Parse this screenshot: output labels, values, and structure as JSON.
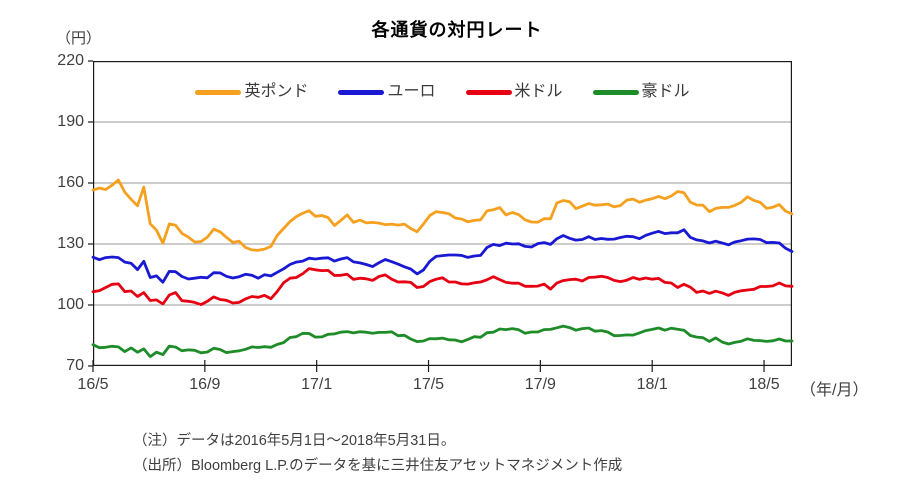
{
  "title": "各通貨の対円レート",
  "y_axis": {
    "unit": "（円）",
    "tick_labels": [
      "220",
      "190",
      "160",
      "130",
      "100",
      "70"
    ]
  },
  "x_axis": {
    "unit": "（年/月）",
    "tick_labels": [
      "16/5",
      "16/9",
      "17/1",
      "17/5",
      "17/9",
      "18/1",
      "18/5"
    ]
  },
  "legend": {
    "items": [
      {
        "id": "gbp",
        "label": "英ポンド",
        "color": "#F5A01E"
      },
      {
        "id": "eur",
        "label": "ユーロ",
        "color": "#1919D4"
      },
      {
        "id": "usd",
        "label": "米ドル",
        "color": "#E60012"
      },
      {
        "id": "aud",
        "label": "豪ドル",
        "color": "#1E8C28"
      }
    ]
  },
  "notes": {
    "line1": "（注）データは2016年5月1日～2018年5月31日。",
    "line2": "（出所）Bloomberg L.P.のデータを基に三井住友アセットマネジメント作成"
  },
  "chart_data": {
    "type": "line",
    "title": "各通貨の対円レート",
    "xlabel": "（年/月）",
    "ylabel": "（円）",
    "ylim": [
      70,
      220
    ],
    "y_ticks": [
      220,
      190,
      160,
      130,
      100,
      70
    ],
    "x_tick_labels": [
      "16/5",
      "16/9",
      "17/1",
      "17/5",
      "17/9",
      "18/1",
      "18/5"
    ],
    "x_tick_month_offsets": [
      0,
      4,
      8,
      12,
      16,
      20,
      24
    ],
    "x_total_months": 25,
    "x_range": "2016-05-01 to 2018-05-31, values sampled approximately weekly",
    "grid": "horizontal-only",
    "legend_position": "top-center-inside",
    "series": [
      {
        "id": "gbp",
        "name": "英ポンド",
        "color": "#F5A01E",
        "values": [
          156.5,
          157.5,
          156.8,
          158.9,
          161.5,
          155.5,
          152.0,
          148.8,
          158.0,
          140.0,
          136.8,
          130.4,
          139.9,
          139.2,
          135.2,
          133.4,
          131.0,
          131.2,
          133.4,
          137.3,
          136.0,
          133.3,
          130.8,
          131.4,
          128.3,
          127.1,
          126.9,
          127.5,
          128.8,
          134.3,
          137.6,
          141.0,
          143.5,
          145.1,
          146.4,
          143.6,
          144.0,
          143.0,
          139.1,
          141.6,
          144.3,
          140.6,
          141.8,
          140.4,
          140.6,
          140.3,
          139.5,
          139.8,
          139.3,
          139.8,
          137.6,
          136.0,
          139.8,
          144.0,
          145.9,
          145.5,
          144.9,
          142.8,
          142.3,
          140.9,
          141.6,
          141.9,
          146.3,
          146.8,
          147.9,
          144.3,
          145.5,
          144.4,
          141.9,
          140.8,
          140.7,
          142.5,
          142.4,
          150.2,
          151.4,
          150.8,
          147.4,
          148.6,
          149.9,
          149.1,
          149.3,
          149.6,
          148.3,
          148.9,
          151.6,
          152.1,
          150.5,
          151.6,
          152.3,
          153.4,
          152.3,
          153.6,
          155.8,
          155.2,
          150.6,
          149.2,
          149.1,
          145.9,
          147.5,
          148.0,
          148.0,
          149.0,
          150.5,
          153.2,
          151.4,
          150.5,
          147.5,
          148.1,
          149.4,
          146.2,
          144.8
        ]
      },
      {
        "id": "eur",
        "name": "ユーロ",
        "color": "#1919D4",
        "values": [
          123.5,
          122.3,
          123.3,
          123.6,
          123.3,
          121.1,
          120.5,
          117.4,
          121.5,
          113.5,
          114.3,
          111.2,
          116.5,
          116.4,
          114.0,
          112.8,
          113.2,
          113.6,
          113.4,
          115.9,
          115.8,
          114.1,
          113.3,
          113.9,
          115.1,
          114.6,
          113.2,
          114.9,
          114.3,
          116.1,
          117.8,
          119.9,
          121.1,
          121.6,
          123.0,
          122.6,
          123.0,
          123.2,
          121.6,
          122.6,
          123.3,
          121.2,
          120.7,
          119.9,
          118.9,
          120.8,
          122.4,
          121.3,
          120.1,
          118.8,
          117.7,
          115.3,
          117.2,
          121.5,
          123.9,
          124.3,
          124.6,
          124.6,
          124.4,
          123.4,
          124.1,
          124.4,
          128.3,
          129.8,
          129.2,
          130.4,
          130.0,
          130.1,
          128.8,
          128.5,
          130.2,
          130.7,
          129.8,
          132.6,
          134.2,
          132.8,
          131.9,
          132.2,
          133.6,
          132.2,
          132.7,
          132.3,
          132.4,
          133.2,
          133.8,
          133.6,
          132.6,
          134.3,
          135.3,
          136.2,
          135.1,
          135.5,
          135.5,
          137.0,
          133.3,
          132.0,
          131.5,
          130.5,
          131.4,
          130.5,
          129.6,
          131.0,
          131.6,
          132.4,
          132.5,
          132.2,
          130.7,
          130.8,
          130.5,
          127.9,
          126.3
        ]
      },
      {
        "id": "usd",
        "name": "米ドル",
        "color": "#E60012",
        "values": [
          106.5,
          107.1,
          108.6,
          110.2,
          110.4,
          106.6,
          106.9,
          104.2,
          106.1,
          102.2,
          102.5,
          100.5,
          104.9,
          106.1,
          102.1,
          101.8,
          101.3,
          100.2,
          101.8,
          104.0,
          102.7,
          102.3,
          101.0,
          101.3,
          103.0,
          104.2,
          103.8,
          104.7,
          103.1,
          106.7,
          110.9,
          113.2,
          113.5,
          115.4,
          117.9,
          117.3,
          116.9,
          117.0,
          114.5,
          114.6,
          115.1,
          112.6,
          113.2,
          112.9,
          112.1,
          114.0,
          114.8,
          112.7,
          111.3,
          111.4,
          111.1,
          108.6,
          109.1,
          111.5,
          112.7,
          113.4,
          111.3,
          111.3,
          110.4,
          110.3,
          110.9,
          111.3,
          112.4,
          113.9,
          112.5,
          111.1,
          110.7,
          110.7,
          109.2,
          109.2,
          109.3,
          110.3,
          107.8,
          110.8,
          112.0,
          112.5,
          112.7,
          111.8,
          113.5,
          113.7,
          114.1,
          113.5,
          112.1,
          111.5,
          112.2,
          113.5,
          112.6,
          113.3,
          112.7,
          113.1,
          111.1,
          110.8,
          108.6,
          110.2,
          108.8,
          106.2,
          106.9,
          105.7,
          106.8,
          106.0,
          104.7,
          106.3,
          107.0,
          107.4,
          107.7,
          109.1,
          109.1,
          109.4,
          110.8,
          109.4,
          109.2
        ]
      },
      {
        "id": "aud",
        "name": "豪ドル",
        "color": "#1E8C28",
        "values": [
          80.5,
          79.0,
          79.2,
          79.7,
          79.4,
          77.1,
          78.9,
          76.8,
          78.4,
          74.6,
          76.8,
          75.6,
          79.8,
          79.3,
          77.5,
          77.9,
          77.7,
          76.5,
          76.9,
          78.7,
          78.1,
          76.6,
          77.1,
          77.5,
          78.2,
          79.4,
          79.1,
          79.5,
          79.2,
          80.6,
          81.5,
          84.0,
          84.4,
          86.1,
          86.0,
          84.2,
          84.3,
          85.6,
          85.8,
          86.6,
          86.9,
          86.3,
          86.8,
          86.6,
          86.1,
          86.5,
          86.5,
          86.8,
          84.9,
          85.1,
          83.3,
          82.0,
          82.3,
          83.5,
          83.4,
          83.7,
          82.9,
          82.8,
          81.9,
          83.1,
          84.4,
          84.1,
          86.4,
          86.6,
          88.2,
          87.9,
          88.4,
          87.8,
          86.1,
          86.7,
          86.7,
          87.9,
          88.0,
          88.8,
          89.6,
          88.9,
          87.6,
          88.4,
          88.7,
          87.1,
          87.4,
          86.7,
          84.9,
          85.0,
          85.3,
          85.2,
          86.3,
          87.4,
          88.0,
          88.7,
          87.6,
          88.6,
          88.1,
          87.6,
          85.0,
          84.2,
          83.9,
          82.1,
          83.8,
          81.8,
          80.8,
          81.6,
          82.2,
          83.4,
          82.6,
          82.5,
          82.1,
          82.4,
          83.3,
          82.3,
          82.3
        ]
      }
    ]
  }
}
